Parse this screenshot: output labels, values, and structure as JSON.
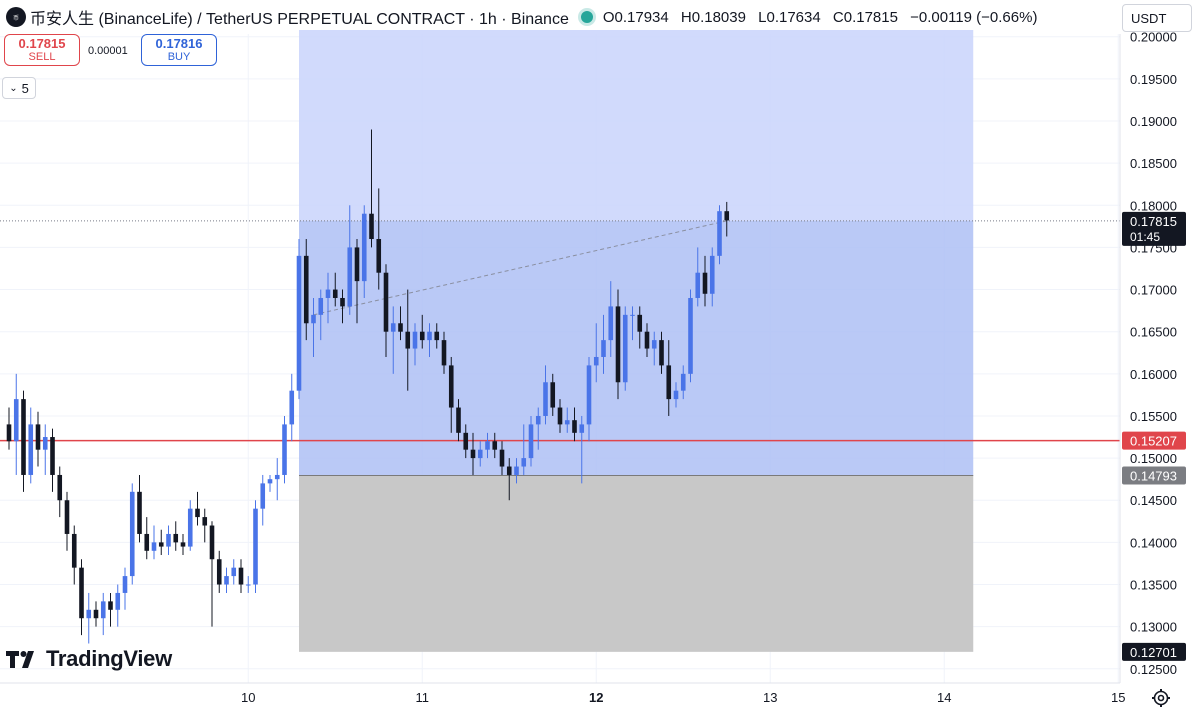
{
  "header": {
    "title": "币安人生 (BinanceLife) / TetherUS PERPETUAL CONTRACT · 1h · Binance",
    "logo_icon": "binancelife-logo-icon",
    "status_icon": "market-open-dot-icon",
    "ohlc": {
      "open": "O0.17934",
      "high": "H0.18039",
      "low": "L0.17634",
      "close": "C0.17815",
      "change": "−0.00119 (−0.66%)"
    }
  },
  "trade": {
    "sell_price": "0.17815",
    "sell_label": "SELL",
    "spread": "0.00001",
    "buy_price": "0.17816",
    "buy_label": "BUY"
  },
  "indicator_toggle": {
    "count": "5",
    "icon": "chevron-down-icon"
  },
  "currency": "USDT",
  "watermark": "TradingView",
  "colors": {
    "up": "#4a74e8",
    "down": "#131722",
    "profit_zone": "#aebff5",
    "loss_zone": "#c8c8c8",
    "entry_line": "#e0454b"
  },
  "chart_data": {
    "type": "candlestick",
    "timeframe": "1h",
    "x_axis": {
      "ticks": [
        {
          "label": "10",
          "t": 33
        },
        {
          "label": "11",
          "t": 57
        },
        {
          "label": "12",
          "t": 81
        },
        {
          "label": "13",
          "t": 105
        },
        {
          "label": "14",
          "t": 129
        },
        {
          "label": "15",
          "t": 153
        }
      ]
    },
    "y_axis": {
      "range": [
        0.1245,
        0.2008
      ],
      "ticks": [
        "0.12500",
        "0.13000",
        "0.13500",
        "0.14000",
        "0.14500",
        "0.15000",
        "0.15500",
        "0.16000",
        "0.16500",
        "0.17000",
        "0.17500",
        "0.18000",
        "0.18500",
        "0.19000",
        "0.19500",
        "0.20000"
      ]
    },
    "grid": true,
    "candles": [
      [
        0.154,
        0.156,
        0.151,
        0.152
      ],
      [
        0.152,
        0.16,
        0.148,
        0.157
      ],
      [
        0.157,
        0.158,
        0.146,
        0.148
      ],
      [
        0.148,
        0.156,
        0.147,
        0.154
      ],
      [
        0.154,
        0.1555,
        0.149,
        0.151
      ],
      [
        0.151,
        0.154,
        0.148,
        0.1525
      ],
      [
        0.1525,
        0.1535,
        0.146,
        0.148
      ],
      [
        0.148,
        0.149,
        0.143,
        0.145
      ],
      [
        0.145,
        0.146,
        0.139,
        0.141
      ],
      [
        0.141,
        0.142,
        0.135,
        0.137
      ],
      [
        0.137,
        0.138,
        0.129,
        0.131
      ],
      [
        0.131,
        0.134,
        0.128,
        0.132
      ],
      [
        0.132,
        0.133,
        0.13,
        0.131
      ],
      [
        0.131,
        0.134,
        0.129,
        0.133
      ],
      [
        0.133,
        0.134,
        0.13,
        0.132
      ],
      [
        0.132,
        0.135,
        0.13,
        0.134
      ],
      [
        0.134,
        0.137,
        0.132,
        0.136
      ],
      [
        0.136,
        0.147,
        0.135,
        0.146
      ],
      [
        0.146,
        0.148,
        0.14,
        0.141
      ],
      [
        0.141,
        0.143,
        0.138,
        0.139
      ],
      [
        0.139,
        0.142,
        0.138,
        0.14
      ],
      [
        0.14,
        0.1415,
        0.1385,
        0.1395
      ],
      [
        0.1395,
        0.142,
        0.1385,
        0.141
      ],
      [
        0.141,
        0.1425,
        0.139,
        0.14
      ],
      [
        0.14,
        0.141,
        0.1385,
        0.1395
      ],
      [
        0.1395,
        0.145,
        0.139,
        0.144
      ],
      [
        0.144,
        0.146,
        0.142,
        0.143
      ],
      [
        0.143,
        0.144,
        0.14,
        0.142
      ],
      [
        0.142,
        0.1425,
        0.13,
        0.138
      ],
      [
        0.138,
        0.139,
        0.134,
        0.135
      ],
      [
        0.135,
        0.137,
        0.134,
        0.136
      ],
      [
        0.136,
        0.138,
        0.135,
        0.137
      ],
      [
        0.137,
        0.138,
        0.134,
        0.135
      ],
      [
        0.135,
        0.136,
        0.134,
        0.135
      ],
      [
        0.135,
        0.145,
        0.134,
        0.144
      ],
      [
        0.144,
        0.148,
        0.142,
        0.147
      ],
      [
        0.147,
        0.148,
        0.146,
        0.1475
      ],
      [
        0.1475,
        0.15,
        0.145,
        0.148
      ],
      [
        0.148,
        0.155,
        0.147,
        0.154
      ],
      [
        0.154,
        0.16,
        0.152,
        0.158
      ],
      [
        0.158,
        0.176,
        0.157,
        0.174
      ],
      [
        0.174,
        0.176,
        0.164,
        0.166
      ],
      [
        0.166,
        0.169,
        0.162,
        0.167
      ],
      [
        0.167,
        0.17,
        0.164,
        0.169
      ],
      [
        0.169,
        0.172,
        0.166,
        0.17
      ],
      [
        0.17,
        0.172,
        0.168,
        0.169
      ],
      [
        0.169,
        0.17,
        0.166,
        0.168
      ],
      [
        0.168,
        0.18,
        0.167,
        0.175
      ],
      [
        0.175,
        0.176,
        0.166,
        0.171
      ],
      [
        0.171,
        0.18,
        0.169,
        0.179
      ],
      [
        0.179,
        0.189,
        0.175,
        0.176
      ],
      [
        0.176,
        0.182,
        0.17,
        0.172
      ],
      [
        0.172,
        0.173,
        0.162,
        0.165
      ],
      [
        0.165,
        0.168,
        0.16,
        0.166
      ],
      [
        0.166,
        0.168,
        0.164,
        0.165
      ],
      [
        0.165,
        0.17,
        0.158,
        0.163
      ],
      [
        0.163,
        0.166,
        0.161,
        0.165
      ],
      [
        0.165,
        0.167,
        0.163,
        0.164
      ],
      [
        0.164,
        0.166,
        0.162,
        0.165
      ],
      [
        0.165,
        0.166,
        0.163,
        0.164
      ],
      [
        0.164,
        0.165,
        0.16,
        0.161
      ],
      [
        0.161,
        0.162,
        0.153,
        0.156
      ],
      [
        0.156,
        0.157,
        0.152,
        0.153
      ],
      [
        0.153,
        0.154,
        0.15,
        0.151
      ],
      [
        0.151,
        0.153,
        0.148,
        0.15
      ],
      [
        0.15,
        0.152,
        0.149,
        0.151
      ],
      [
        0.151,
        0.153,
        0.15,
        0.152
      ],
      [
        0.152,
        0.153,
        0.15,
        0.151
      ],
      [
        0.151,
        0.152,
        0.148,
        0.149
      ],
      [
        0.149,
        0.15,
        0.145,
        0.148
      ],
      [
        0.148,
        0.15,
        0.147,
        0.149
      ],
      [
        0.149,
        0.154,
        0.148,
        0.15
      ],
      [
        0.15,
        0.155,
        0.149,
        0.154
      ],
      [
        0.154,
        0.156,
        0.151,
        0.155
      ],
      [
        0.155,
        0.161,
        0.154,
        0.159
      ],
      [
        0.159,
        0.16,
        0.155,
        0.156
      ],
      [
        0.156,
        0.157,
        0.153,
        0.154
      ],
      [
        0.154,
        0.156,
        0.153,
        0.1545
      ],
      [
        0.1545,
        0.156,
        0.152,
        0.153
      ],
      [
        0.153,
        0.155,
        0.147,
        0.154
      ],
      [
        0.154,
        0.162,
        0.152,
        0.161
      ],
      [
        0.161,
        0.166,
        0.159,
        0.162
      ],
      [
        0.162,
        0.167,
        0.16,
        0.164
      ],
      [
        0.164,
        0.171,
        0.162,
        0.168
      ],
      [
        0.168,
        0.17,
        0.157,
        0.159
      ],
      [
        0.159,
        0.168,
        0.158,
        0.167
      ],
      [
        0.167,
        0.168,
        0.164,
        0.167
      ],
      [
        0.167,
        0.168,
        0.163,
        0.165
      ],
      [
        0.165,
        0.166,
        0.162,
        0.163
      ],
      [
        0.163,
        0.165,
        0.161,
        0.164
      ],
      [
        0.164,
        0.165,
        0.16,
        0.161
      ],
      [
        0.161,
        0.164,
        0.155,
        0.157
      ],
      [
        0.157,
        0.159,
        0.156,
        0.158
      ],
      [
        0.158,
        0.161,
        0.157,
        0.16
      ],
      [
        0.16,
        0.17,
        0.159,
        0.169
      ],
      [
        0.169,
        0.175,
        0.168,
        0.172
      ],
      [
        0.172,
        0.174,
        0.168,
        0.1695
      ],
      [
        0.1695,
        0.175,
        0.168,
        0.174
      ],
      [
        0.174,
        0.18,
        0.173,
        0.1793
      ],
      [
        0.1793,
        0.1804,
        0.1763,
        0.1782
      ]
    ],
    "position": {
      "side": "long",
      "entry": 0.14793,
      "target": 0.2008,
      "stop": 0.12701,
      "start_t": 40,
      "end_t": 133
    },
    "horizontal_lines": [
      {
        "price": 0.15207,
        "label": "0.15207"
      }
    ],
    "last_price": {
      "value": 0.17815,
      "label": "0.17815",
      "countdown": "01:45"
    },
    "price_labels": {
      "entry": "0.14793",
      "stop": "0.12701"
    }
  }
}
